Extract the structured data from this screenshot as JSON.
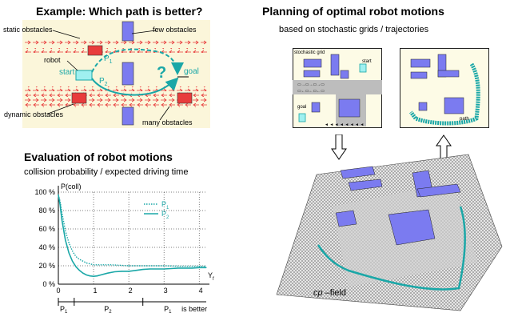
{
  "example": {
    "title": "Example: Which path is better?",
    "label_static_obstacles": "static obstacles",
    "label_few_obstacles": "few obstacles",
    "label_robot": "robot",
    "label_start": "start",
    "label_p1": "P",
    "label_p1_sub": "1",
    "label_p2": "P",
    "label_p2_sub": "2",
    "label_question": "?",
    "label_goal": "goal",
    "label_dynamic_obstacles": "dynamic obstacles",
    "label_many_obstacles": "many obstacles"
  },
  "evaluation": {
    "title": "Evaluation of robot motions",
    "subtitle": "collision probability / expected driving time",
    "bar_p1_left": "P",
    "bar_p1_left_sub": "1",
    "bar_p2": "P",
    "bar_p2_sub": "2",
    "bar_p1_right": "P",
    "bar_p1_right_sub": "1",
    "bar_is_better": "is better"
  },
  "planning": {
    "title": "Planning of optimal robot motions",
    "subtitle": "based on stochastic grids / trajectories",
    "grid_label": "stochastic grid",
    "grid_start": "start",
    "grid_goal": "goal",
    "path_label": "path",
    "field_label_italic": "cp",
    "field_label_rest": " –field"
  },
  "chart_data": {
    "type": "line",
    "ylabel": "P(coll)",
    "xlabel": "Y",
    "xlabel_sub": "f",
    "x_ticks": [
      "0",
      "1",
      "2",
      "3",
      "4"
    ],
    "y_ticks": [
      "100 %",
      "80 %",
      "60 %",
      "40 %",
      "20 %",
      "0 %"
    ],
    "xlim": [
      0,
      4.2
    ],
    "ylim": [
      0,
      100
    ],
    "grid": true,
    "legend_placement": "top-right",
    "series": [
      {
        "name": "P",
        "name_sub": "1",
        "style": "dotted",
        "color": "#1aa7a7",
        "x": [
          0,
          0.05,
          0.1,
          0.2,
          0.3,
          0.4,
          0.5,
          0.6,
          0.8,
          1.0,
          1.2,
          1.5,
          2.0,
          2.5,
          3.0,
          3.5,
          4.0,
          4.2
        ],
        "y": [
          97,
          90,
          78,
          58,
          45,
          36,
          30,
          27,
          23,
          21,
          21,
          21,
          20,
          20,
          20,
          19.5,
          19.5,
          19.5
        ]
      },
      {
        "name": "P",
        "name_sub": "2",
        "style": "solid",
        "color": "#1aa7a7",
        "x": [
          0,
          0.05,
          0.1,
          0.2,
          0.3,
          0.4,
          0.5,
          0.6,
          0.7,
          0.8,
          0.9,
          1.0,
          1.1,
          1.2,
          1.4,
          1.6,
          1.8,
          2.0,
          2.2,
          2.4,
          2.6,
          2.8,
          3.0,
          3.2,
          3.4,
          3.6,
          3.8,
          4.0,
          4.2
        ],
        "y": [
          97,
          86,
          70,
          48,
          34,
          25,
          19,
          15,
          12,
          10,
          9,
          8.5,
          9,
          10,
          12,
          13.5,
          14,
          14,
          15,
          16,
          16.5,
          16.5,
          16.5,
          17,
          17.5,
          17.5,
          17.5,
          18,
          18
        ]
      }
    ]
  },
  "colors": {
    "teal": "#1aa7a7",
    "obstacle_blue": "#7b7bf0",
    "obstacle_red": "#e83c3c",
    "example_bg": "#fbf6da",
    "panel_yellow": "#fdfbe6"
  }
}
